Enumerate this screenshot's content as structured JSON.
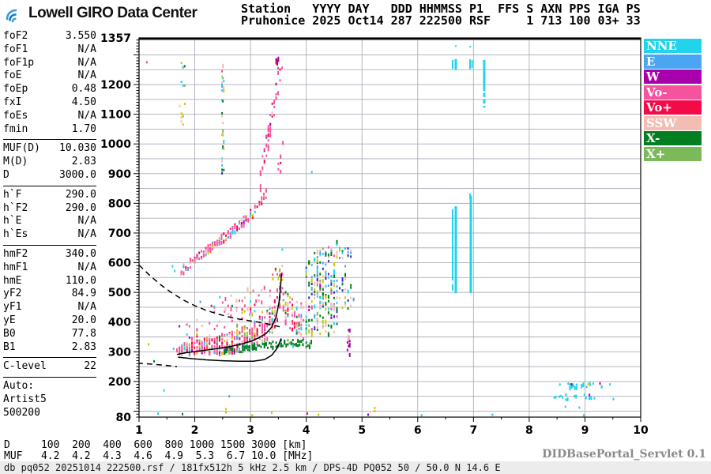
{
  "header": {
    "logo_text": "Lowell GIRO Data Center",
    "station_line1": "Station   YYYY DAY   DDD HHMMSS P1  FFS S AXN PPS IGA PS",
    "station_line2": "Pruhonice 2025 Oct14 287 222500 RSF     1 713 100 03+ 33"
  },
  "params": {
    "groups": [
      [
        [
          "foF2",
          "3.550"
        ],
        [
          "foF1",
          "N/A"
        ],
        [
          "foF1p",
          "N/A"
        ],
        [
          "foE",
          "N/A"
        ],
        [
          "foEp",
          "0.48"
        ],
        [
          "fxI",
          "4.50"
        ],
        [
          "foEs",
          "N/A"
        ],
        [
          "fmin",
          "1.70"
        ]
      ],
      [
        [
          "MUF(D)",
          "10.030"
        ],
        [
          "M(D)",
          "2.83"
        ],
        [
          "D",
          "3000.0"
        ]
      ],
      [
        [
          "h`F",
          "290.0"
        ],
        [
          "h`F2",
          "290.0"
        ],
        [
          "h`E",
          "N/A"
        ],
        [
          "h`Es",
          "N/A"
        ]
      ],
      [
        [
          "hmF2",
          "340.0"
        ],
        [
          "hmF1",
          "N/A"
        ],
        [
          "hmE",
          "110.0"
        ],
        [
          "yF2",
          "84.9"
        ],
        [
          "yF1",
          "N/A"
        ],
        [
          "yE",
          "20.0"
        ],
        [
          "B0",
          "77.8"
        ],
        [
          "B1",
          "2.83"
        ]
      ],
      [
        [
          "C-level",
          "22"
        ]
      ]
    ],
    "auto_lines": [
      "Auto:",
      "Artist5",
      "500200"
    ]
  },
  "legend": [
    {
      "label": "NNE",
      "color": "#22D3EC"
    },
    {
      "label": "E",
      "color": "#4AA6F2"
    },
    {
      "label": "W",
      "color": "#A800AC"
    },
    {
      "label": "Vo-",
      "color": "#F6539F"
    },
    {
      "label": "Vo+",
      "color": "#F50A48"
    },
    {
      "label": "SSW",
      "color": "#F3BDB3"
    },
    {
      "label": "X-",
      "color": "#037F22"
    },
    {
      "label": "X+",
      "color": "#7CB95A"
    }
  ],
  "footer": {
    "d_line": "D     100  200  400  600  800 1000 1500 3000 [km]",
    "muf_line": "MUF   4.2  4.2  4.3  4.6  4.9  5.3  6.7 10.0 [MHz]",
    "status": "db pq052 20251014 222500.rsf / 181fx512h 5 kHz 2.5 km / DPS-4D PQ052 50 / 50.0 N 14.6 E",
    "servlet": "DIDBasePortal_Servlet 0.1"
  },
  "chart_data": {
    "type": "scatter",
    "title": "Pruhonice ionogram 2025 Oct14 222500 RSF",
    "x_axis": {
      "label": "[MHz]",
      "min": 1,
      "max": 10,
      "grid_step": 1,
      "minor_tick": 0.5,
      "labels": [
        1,
        2,
        3,
        4,
        5,
        6,
        7,
        8,
        9,
        10
      ]
    },
    "y_axis": {
      "label": "[km]",
      "min": 80,
      "max": 1357,
      "grid_step": 50,
      "minor_tick": 10,
      "major_tick": 100,
      "labels": [
        1357,
        1200,
        1100,
        1000,
        900,
        800,
        700,
        600,
        500,
        400,
        300,
        200,
        80
      ]
    },
    "palette": {
      "NNE": "#22D3EC",
      "E": "#4AA6F2",
      "W": "#A800AC",
      "Vo-": "#F6539F",
      "Vo+": "#F50A48",
      "SSW": "#F3BDB3",
      "X-": "#037F22",
      "X+": "#7CB95A",
      "yellow": "#CFC800",
      "navy": "#2B2FC2"
    },
    "grid_color": "#AAAEB8",
    "curves": [
      {
        "name": "muf-transmission-curve",
        "style": "dashed",
        "points": [
          [
            1.0,
            592
          ],
          [
            1.2,
            556
          ],
          [
            1.4,
            524
          ],
          [
            1.6,
            497
          ],
          [
            1.8,
            474
          ],
          [
            2.0,
            455
          ],
          [
            2.2,
            440
          ],
          [
            2.4,
            428
          ],
          [
            2.6,
            418
          ],
          [
            2.8,
            410
          ],
          [
            3.0,
            404
          ],
          [
            3.2,
            398
          ],
          [
            3.4,
            390
          ],
          [
            3.55,
            383
          ]
        ]
      },
      {
        "name": "artist-otrace-fit",
        "style": "solid",
        "points": [
          [
            1.68,
            291
          ],
          [
            1.85,
            297
          ],
          [
            2.05,
            302
          ],
          [
            2.25,
            307
          ],
          [
            2.45,
            312
          ],
          [
            2.65,
            318
          ],
          [
            2.85,
            327
          ],
          [
            3.0,
            335
          ],
          [
            3.15,
            347
          ],
          [
            3.28,
            362
          ],
          [
            3.38,
            383
          ],
          [
            3.46,
            418
          ],
          [
            3.51,
            465
          ],
          [
            3.54,
            520
          ],
          [
            3.555,
            565
          ]
        ]
      },
      {
        "name": "true-height-profile",
        "style": "solid",
        "points": [
          [
            1.7,
            282
          ],
          [
            1.95,
            277
          ],
          [
            2.2,
            273
          ],
          [
            2.5,
            270
          ],
          [
            2.8,
            268
          ],
          [
            3.05,
            268
          ],
          [
            3.25,
            274
          ],
          [
            3.38,
            288
          ],
          [
            3.47,
            310
          ],
          [
            3.52,
            330
          ],
          [
            3.55,
            345
          ]
        ]
      },
      {
        "name": "profile-model-extension",
        "style": "dashed",
        "points": [
          [
            0.97,
            262
          ],
          [
            1.25,
            258
          ],
          [
            1.5,
            254
          ],
          [
            1.68,
            250
          ]
        ]
      }
    ],
    "clusters": [
      {
        "name": "f-trace-main",
        "seed": 11,
        "n": 430,
        "snap": 0.045,
        "spread": [
          16,
          55
        ],
        "tail": [
          0.12,
          90
        ],
        "points": [
          [
            1.68,
            306
          ],
          [
            1.9,
            312
          ],
          [
            2.15,
            318
          ],
          [
            2.4,
            324
          ],
          [
            2.65,
            333
          ],
          [
            2.9,
            344
          ],
          [
            3.1,
            360
          ],
          [
            3.25,
            382
          ],
          [
            3.38,
            405
          ],
          [
            3.46,
            440
          ],
          [
            3.52,
            500
          ],
          [
            3.56,
            555
          ]
        ],
        "colors": {
          "Vo-": 0.46,
          "Vo+": 0.17,
          "SSW": 0.12,
          "yellow": 0.09,
          "NNE": 0.05,
          "E": 0.03,
          "W": 0.02,
          "X+": 0.03,
          "X-": 0.03
        }
      },
      {
        "name": "f-trace-halo",
        "seed": 21,
        "n": 45,
        "snap": 0.05,
        "spread": 45,
        "points": [
          [
            2.3,
            445
          ],
          [
            2.7,
            460
          ],
          [
            3.0,
            475
          ],
          [
            3.35,
            520
          ],
          [
            3.5,
            560
          ]
        ],
        "colors": {
          "SSW": 0.3,
          "Vo-": 0.3,
          "yellow": 0.2,
          "NNE": 0.1,
          "Vo+": 0.1
        }
      },
      {
        "name": "f-trace-cusp",
        "seed": 31,
        "n": 80,
        "snap": 0.04,
        "spread": 60,
        "points": [
          [
            3.55,
            470
          ],
          [
            3.65,
            440
          ],
          [
            3.8,
            415
          ],
          [
            3.95,
            400
          ]
        ],
        "colors": {
          "Vo-": 0.35,
          "Vo+": 0.15,
          "SSW": 0.25,
          "yellow": 0.08,
          "NNE": 0.07,
          "E": 0.05,
          "X-": 0.05
        }
      },
      {
        "name": "xtrace-green-band",
        "seed": 41,
        "n": 110,
        "snap": 0.03,
        "spread": 12,
        "points": [
          [
            2.5,
            300
          ],
          [
            2.85,
            310
          ],
          [
            3.15,
            320
          ],
          [
            3.45,
            328
          ],
          [
            3.75,
            330
          ],
          [
            4.1,
            326
          ]
        ],
        "colors": {
          "X-": 0.78,
          "X+": 0.12,
          "NNE": 0.05,
          "navy": 0.05
        }
      },
      {
        "name": "spread-columns",
        "seed": 51,
        "n": 210,
        "snap": 0.05,
        "spread": [
          130,
          165
        ],
        "points": [
          [
            4.0,
            480
          ],
          [
            4.3,
            510
          ],
          [
            4.55,
            520
          ]
        ],
        "colors": {
          "X-": 0.24,
          "NNE": 0.13,
          "SSW": 0.16,
          "yellow": 0.12,
          "X+": 0.08,
          "navy": 0.09,
          "E": 0.08,
          "Vo-": 0.06,
          "W": 0.04
        }
      },
      {
        "name": "spread-columns-right",
        "seed": 61,
        "n": 40,
        "snap": 0.05,
        "spread": 110,
        "points": [
          [
            4.55,
            540
          ],
          [
            4.85,
            560
          ]
        ],
        "colors": {
          "navy": 0.25,
          "E": 0.2,
          "SSW": 0.2,
          "X-": 0.15,
          "NNE": 0.1,
          "yellow": 0.1
        }
      },
      {
        "name": "w-streak",
        "seed": 71,
        "n": 16,
        "snap": 0.02,
        "spread": 48,
        "points": [
          [
            4.74,
            330
          ],
          [
            4.78,
            330
          ]
        ],
        "colors": {
          "W": 0.75,
          "SSW": 0.25
        }
      },
      {
        "name": "oblique-spread-band",
        "seed": 81,
        "n": 150,
        "snap": 0.04,
        "spread": 15,
        "points": [
          [
            1.76,
            575
          ],
          [
            2.05,
            618
          ],
          [
            2.35,
            660
          ],
          [
            2.65,
            703
          ],
          [
            2.95,
            752
          ],
          [
            3.15,
            795
          ],
          [
            3.3,
            838
          ]
        ],
        "colors": {
          "Vo-": 0.58,
          "Vo+": 0.12,
          "SSW": 0.08,
          "NNE": 0.07,
          "yellow": 0.07,
          "E": 0.04,
          "W": 0.04
        }
      },
      {
        "name": "oblique-spread-upper",
        "seed": 91,
        "n": 50,
        "snap": 0.035,
        "spread": 45,
        "points": [
          [
            3.18,
            890
          ],
          [
            3.3,
            1010
          ],
          [
            3.42,
            1120
          ],
          [
            3.5,
            1220
          ],
          [
            3.56,
            1290
          ]
        ],
        "colors": {
          "Vo-": 0.66,
          "Vo+": 0.16,
          "W": 0.08,
          "SSW": 0.05,
          "yellow": 0.05
        }
      },
      {
        "name": "top-magenta-blob",
        "seed": 101,
        "n": 10,
        "snap": 0.02,
        "spread": 10,
        "points": [
          [
            3.46,
            1278
          ],
          [
            3.5,
            1282
          ]
        ],
        "colors": {
          "W": 0.6,
          "Vo+": 0.4
        }
      },
      {
        "name": "upper-sparse-pink",
        "seed": 111,
        "n": 8,
        "snap": 0.04,
        "spread": 40,
        "points": [
          [
            3.5,
            930
          ],
          [
            3.6,
            975
          ]
        ],
        "colors": {
          "Vo-": 0.8,
          "Vo+": 0.2
        }
      },
      {
        "name": "noise-column-2p5",
        "seed": 121,
        "n": 30,
        "snap": 0.015,
        "spread": 200,
        "points": [
          [
            2.49,
            1090
          ],
          [
            2.52,
            1090
          ]
        ],
        "colors": {
          "SSW": 0.22,
          "yellow": 0.2,
          "NNE": 0.14,
          "X-": 0.14,
          "X+": 0.08,
          "E": 0.08,
          "Vo-": 0.08,
          "navy": 0.06
        }
      },
      {
        "name": "noise-left-edge",
        "seed": 131,
        "n": 14,
        "snap": 0.03,
        "spread": 115,
        "points": [
          [
            1.73,
            1180
          ],
          [
            1.85,
            1180
          ]
        ],
        "colors": {
          "SSW": 0.3,
          "yellow": 0.22,
          "X-": 0.22,
          "X+": 0.1,
          "NNE": 0.08,
          "Vo-": 0.08
        }
      },
      {
        "name": "bottom-right-row1",
        "seed": 141,
        "n": 26,
        "snap": 0.03,
        "spread": 8,
        "points": [
          [
            8.55,
            187
          ],
          [
            9.3,
            187
          ]
        ],
        "colors": {
          "NNE": 0.88,
          "W": 0.06,
          "yellow": 0.06
        }
      },
      {
        "name": "bottom-right-row2",
        "seed": 151,
        "n": 20,
        "snap": 0.03,
        "spread": 9,
        "points": [
          [
            8.45,
            147
          ],
          [
            9.2,
            147
          ]
        ],
        "colors": {
          "NNE": 0.92,
          "W": 0.08
        }
      }
    ],
    "rfi_lines": [
      [
        6.626,
        1283,
        1253,
        2
      ],
      [
        6.683,
        1286,
        1249,
        3
      ],
      [
        6.938,
        1285,
        1252,
        2
      ],
      [
        6.975,
        1282,
        1255,
        2
      ],
      [
        7.193,
        1283,
        1178,
        3
      ],
      [
        7.193,
        1172,
        1158,
        3
      ],
      [
        7.193,
        1150,
        1136,
        3
      ],
      [
        7.193,
        1128,
        1122,
        3
      ],
      [
        6.683,
        1332,
        1327,
        2
      ],
      [
        6.94,
        1330,
        1326,
        2
      ],
      [
        6.626,
        780,
        540,
        2
      ],
      [
        6.626,
        528,
        506,
        2
      ],
      [
        6.683,
        790,
        497,
        3
      ],
      [
        6.938,
        833,
        815,
        2
      ],
      [
        6.952,
        826,
        498,
        3
      ]
    ],
    "singles": [
      [
        1.14,
        1275,
        "Vo-"
      ],
      [
        1.34,
        92,
        "NNE"
      ],
      [
        1.78,
        90,
        "X-"
      ],
      [
        2.56,
        96,
        "yellow"
      ],
      [
        2.56,
        107,
        "yellow"
      ],
      [
        3.03,
        86,
        "yellow"
      ],
      [
        3.38,
        95,
        "yellow"
      ],
      [
        4.02,
        92,
        "Vo+"
      ],
      [
        4.22,
        88,
        "yellow"
      ],
      [
        5.11,
        88,
        "W"
      ],
      [
        5.23,
        100,
        "yellow"
      ],
      [
        5.23,
        111,
        "yellow"
      ],
      [
        6.07,
        86,
        "NNE"
      ],
      [
        7.34,
        88,
        "NNE"
      ],
      [
        8.98,
        86,
        "NNE"
      ],
      [
        1.17,
        325,
        "yellow"
      ],
      [
        1.27,
        268,
        "X-"
      ],
      [
        1.45,
        170,
        "NNE"
      ],
      [
        1.62,
        310,
        "NNE"
      ],
      [
        1.6,
        588,
        "NNE"
      ],
      [
        1.64,
        572,
        "NNE"
      ],
      [
        1.75,
        560,
        "SSW"
      ],
      [
        2.05,
        620,
        "E"
      ],
      [
        2.1,
        468,
        "E"
      ],
      [
        2.35,
        452,
        "NNE"
      ],
      [
        4.1,
        905,
        "NNE"
      ],
      [
        2.62,
        150,
        "E"
      ],
      [
        8.65,
        115,
        "NNE"
      ],
      [
        8.9,
        112,
        "NNE"
      ],
      [
        9.51,
        141,
        "NNE"
      ],
      [
        9.45,
        190,
        "NNE"
      ]
    ]
  }
}
